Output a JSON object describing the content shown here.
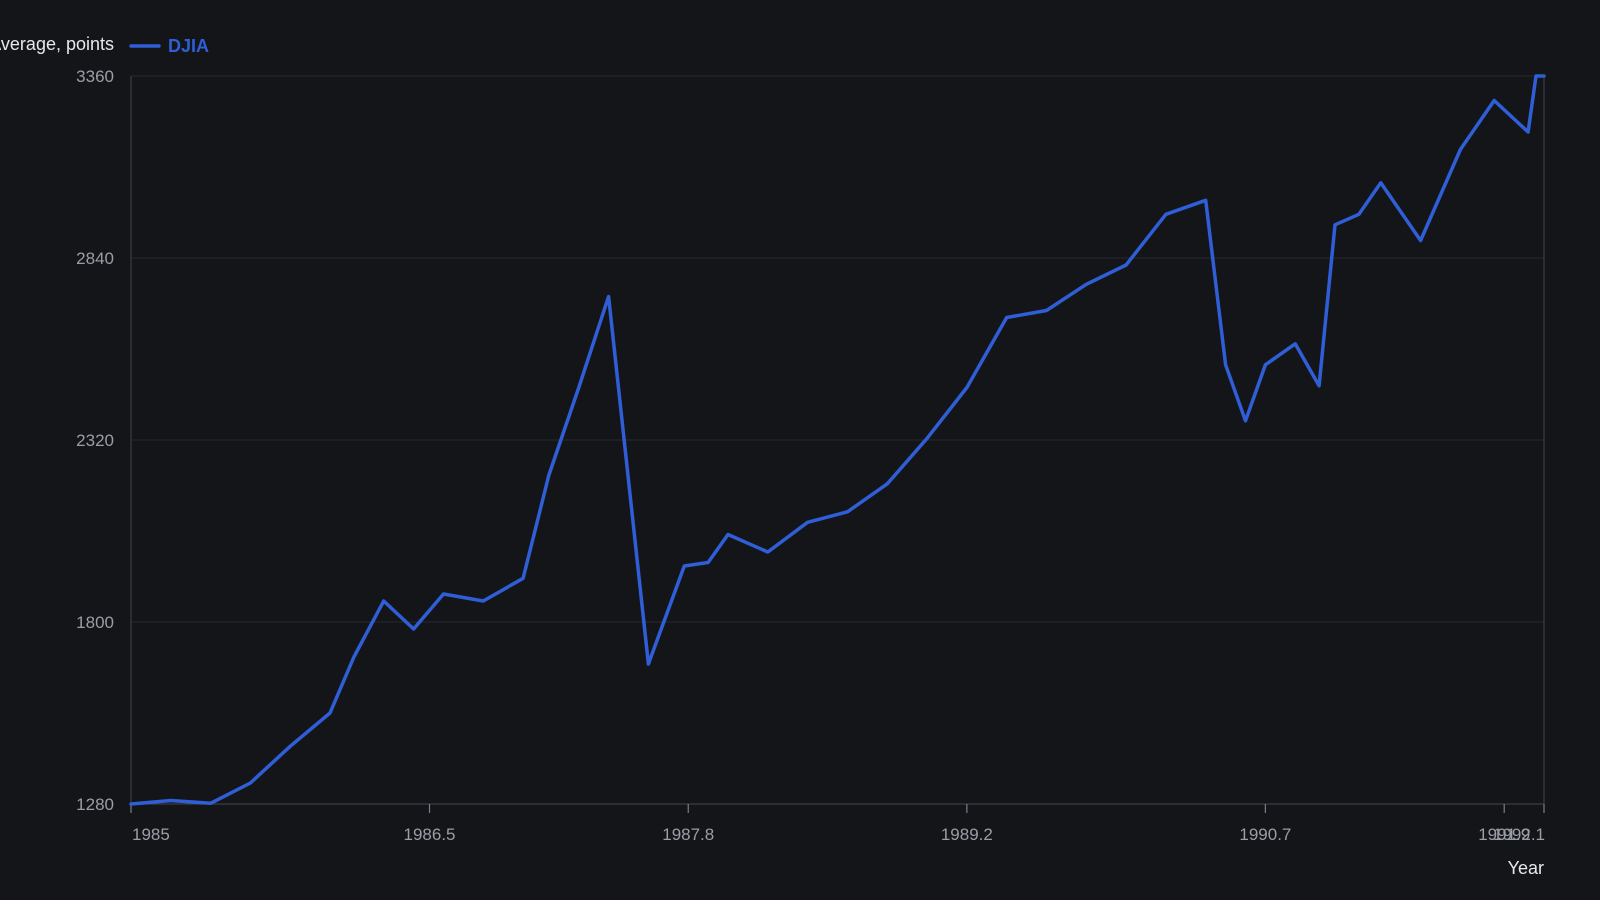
{
  "chart_data": {
    "type": "line",
    "title": "",
    "xlabel": "Year",
    "ylabel": "Dow Jones Industrial Average, points",
    "xlim": [
      1985,
      1992.1
    ],
    "ylim": [
      1280,
      3360
    ],
    "xticks": [
      1985,
      1986.5,
      1987.8,
      1989.2,
      1990.7,
      1991.9,
      1992.1
    ],
    "xtick_labels": [
      "1985",
      "1986.5",
      "1987.8",
      "1989.2",
      "1990.7",
      "1991.9",
      "1992.1"
    ],
    "yticks": [
      1280,
      1800,
      2320,
      2840,
      3360
    ],
    "ytick_labels": [
      "1280",
      "1800",
      "2320",
      "2840",
      "3360"
    ],
    "grid": true,
    "legend": "top-left",
    "series": [
      {
        "name": "DJIA",
        "color": "#2f5ed6",
        "x": [
          1985.0,
          1985.2,
          1985.4,
          1985.6,
          1985.8,
          1986.0,
          1986.12,
          1986.27,
          1986.42,
          1986.57,
          1986.77,
          1986.97,
          1987.1,
          1987.25,
          1987.4,
          1987.6,
          1987.78,
          1987.9,
          1988.0,
          1988.2,
          1988.4,
          1988.6,
          1988.8,
          1989.0,
          1989.2,
          1989.4,
          1989.6,
          1989.8,
          1990.0,
          1990.2,
          1990.4,
          1990.5,
          1990.6,
          1990.7,
          1990.85,
          1990.97,
          1991.05,
          1991.17,
          1991.28,
          1991.48,
          1991.68,
          1991.85,
          1992.02,
          1992.06,
          1992.1
        ],
        "y": [
          1280,
          1290,
          1282,
          1340,
          1445,
          1540,
          1700,
          1860,
          1780,
          1880,
          1860,
          1925,
          2220,
          2470,
          2730,
          1680,
          1960,
          1970,
          2050,
          2000,
          2085,
          2115,
          2195,
          2325,
          2470,
          2670,
          2690,
          2765,
          2820,
          2965,
          3005,
          2535,
          2375,
          2535,
          2595,
          2475,
          2935,
          2965,
          3055,
          2890,
          3150,
          3290,
          3200,
          3360,
          3360
        ]
      }
    ]
  }
}
